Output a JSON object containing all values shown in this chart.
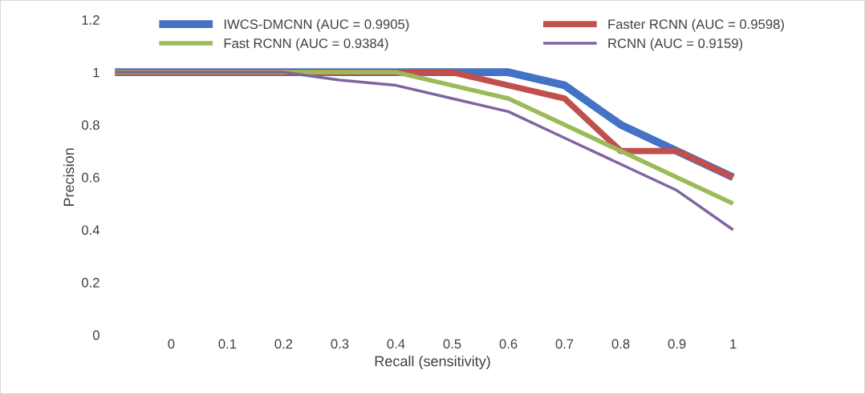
{
  "chart_data": {
    "type": "line",
    "xlabel": "Recall (sensitivity)",
    "ylabel": "Precision",
    "categories": [
      null,
      "0",
      "0.1",
      "0.2",
      "0.3",
      "0.4",
      "0.5",
      "0.6",
      "0.7",
      "0.8",
      "0.9",
      "1"
    ],
    "series": [
      {
        "name": "IWCS-DMCNN (AUC = 0.9905)",
        "color": "#4472c4",
        "values": [
          1,
          1,
          1,
          1,
          1,
          1,
          1,
          1,
          0.95,
          0.8,
          0.7,
          0.6
        ]
      },
      {
        "name": "Faster RCNN (AUC = 0.9598)",
        "color": "#c0504d",
        "values": [
          1,
          1,
          1,
          1,
          1,
          1,
          1,
          0.95,
          0.9,
          0.7,
          0.7,
          0.6
        ]
      },
      {
        "name": "Fast RCNN (AUC = 0.9384)",
        "color": "#9bbb59",
        "values": [
          1,
          1,
          1,
          1,
          1,
          1,
          0.95,
          0.9,
          0.8,
          0.7,
          0.6,
          0.5
        ]
      },
      {
        "name": "RCNN (AUC = 0.9159)",
        "color": "#8064a2",
        "values": [
          1,
          1,
          1,
          1,
          0.97,
          0.95,
          0.9,
          0.85,
          0.75,
          0.65,
          0.55,
          0.4
        ]
      }
    ],
    "ylim": [
      0,
      1.2
    ],
    "yticks": [
      0,
      0.2,
      0.4,
      0.6,
      0.8,
      1,
      1.2
    ],
    "grid": false,
    "legend": "top",
    "marker": "none",
    "line_style": "solid"
  }
}
